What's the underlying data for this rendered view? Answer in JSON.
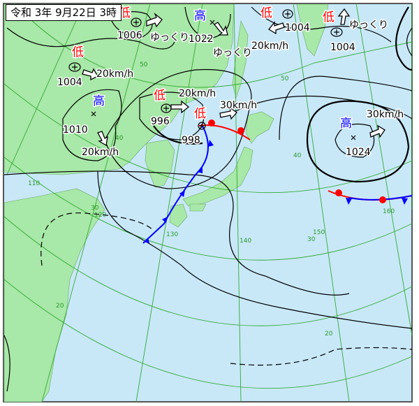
{
  "title": "令和 3年 9月22日 3時",
  "colors": {
    "land": "#a8e8a8",
    "sea": "#c8e8f8",
    "grid": "#33aa33",
    "low": "#ff0000",
    "high": "#0000ff",
    "warm_front": "#ff0000",
    "cold_front": "#0000ff"
  },
  "symbols": {
    "low": "低",
    "high": "高",
    "slow": "ゆっくり"
  },
  "systems": [
    {
      "type": "low",
      "pressure": "1006",
      "motion": "ゆっくり"
    },
    {
      "type": "high",
      "pressure": "1022",
      "motion": "ゆっくり"
    },
    {
      "type": "low",
      "pressure": "1004",
      "motion": "20km/h"
    },
    {
      "type": "low",
      "pressure": "1004",
      "motion": "ゆっくり"
    },
    {
      "type": "low",
      "pressure": "1004",
      "motion": "20km/h"
    },
    {
      "type": "high",
      "pressure": "1010",
      "motion": "20km/h"
    },
    {
      "type": "low",
      "pressure": "996",
      "motion": "20km/h"
    },
    {
      "type": "low",
      "pressure": "998",
      "motion": "30km/h"
    },
    {
      "type": "high",
      "pressure": "1024",
      "motion": "30km/h"
    }
  ],
  "grid_labels": {
    "lat": [
      "50",
      "40",
      "30",
      "20",
      "50",
      "40",
      "30",
      "20"
    ],
    "lon": [
      "110",
      "120",
      "130",
      "140",
      "150",
      "160"
    ]
  }
}
